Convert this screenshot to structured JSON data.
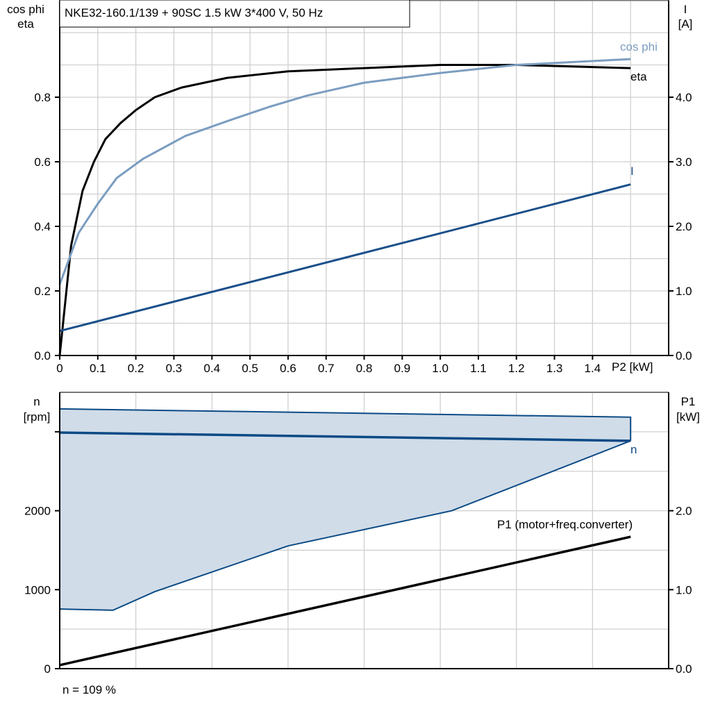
{
  "title": "NKE32-160.1/139 + 90SC   1.5 kW   3*400 V, 50 Hz",
  "footnote": "n = 109 %",
  "colors": {
    "eta": "#000000",
    "cos_phi": "#7b9dc1",
    "current": "#1a4f8a",
    "speed": "#0b4a85",
    "speed_band": "#d0dce8",
    "p1": "#000000",
    "grid": "#d0d0d0"
  },
  "chart_data": [
    {
      "type": "line",
      "xlabel": "P2 [kW]",
      "xlim": [
        0,
        1.6
      ],
      "x_ticks": [
        "0",
        "0.1",
        "0.2",
        "0.3",
        "0.4",
        "0.5",
        "0.6",
        "0.7",
        "0.8",
        "0.9",
        "1.0",
        "1.1",
        "1.2",
        "1.3",
        "1.4"
      ],
      "ylabel_left": [
        "cos phi",
        "eta"
      ],
      "ylim_left": [
        0,
        1.1
      ],
      "y_ticks_left": [
        "0.0",
        "0.2",
        "0.4",
        "0.6",
        "0.8"
      ],
      "ylabel_right": [
        "I",
        "[A]"
      ],
      "ylim_right": [
        0,
        5.5
      ],
      "y_ticks_right": [
        "0.0",
        "1.0",
        "2.0",
        "3.0",
        "4.0"
      ],
      "grid": true,
      "series": [
        {
          "name": "eta",
          "axis": "left",
          "x": [
            0,
            0.03,
            0.06,
            0.09,
            0.12,
            0.16,
            0.2,
            0.25,
            0.32,
            0.44,
            0.6,
            0.8,
            1.0,
            1.2,
            1.5
          ],
          "y": [
            0,
            0.34,
            0.51,
            0.6,
            0.67,
            0.72,
            0.76,
            0.8,
            0.83,
            0.86,
            0.88,
            0.89,
            0.9,
            0.9,
            0.89
          ]
        },
        {
          "name": "cos phi",
          "axis": "left",
          "x": [
            0,
            0.05,
            0.1,
            0.15,
            0.22,
            0.33,
            0.45,
            0.55,
            0.65,
            0.8,
            1.0,
            1.2,
            1.5
          ],
          "y": [
            0.22,
            0.38,
            0.47,
            0.55,
            0.61,
            0.68,
            0.73,
            0.77,
            0.805,
            0.845,
            0.875,
            0.9,
            0.918
          ]
        },
        {
          "name": "I",
          "axis": "right",
          "x": [
            0,
            1.5
          ],
          "y": [
            0.38,
            2.65
          ]
        }
      ]
    },
    {
      "type": "area",
      "xlim": [
        0,
        1.6
      ],
      "ylabel_left": [
        "n",
        "[rpm]"
      ],
      "ylim_left": [
        0,
        3500
      ],
      "y_ticks_left": [
        "0",
        "1000",
        "2000"
      ],
      "ylabel_right": [
        "P1",
        "[kW]"
      ],
      "ylim_right": [
        0,
        3.5
      ],
      "y_ticks_right": [
        "0.0",
        "1.0",
        "2.0"
      ],
      "grid": true,
      "series": [
        {
          "name": "n",
          "axis": "left",
          "x": [
            0,
            1.5
          ],
          "y": [
            2990,
            2885
          ]
        },
        {
          "name": "n band upper",
          "axis": "left",
          "x": [
            0,
            1.5
          ],
          "y": [
            3290,
            3185
          ]
        },
        {
          "name": "n band lower",
          "axis": "left",
          "x": [
            0,
            0.14,
            0.25,
            0.6,
            1.03,
            1.5
          ],
          "y": [
            755,
            740,
            975,
            1555,
            2000,
            2885
          ]
        },
        {
          "name": "P1 (motor+freq.converter)",
          "axis": "right",
          "x": [
            0,
            1.5
          ],
          "y": [
            0.045,
            1.67
          ]
        }
      ]
    }
  ]
}
